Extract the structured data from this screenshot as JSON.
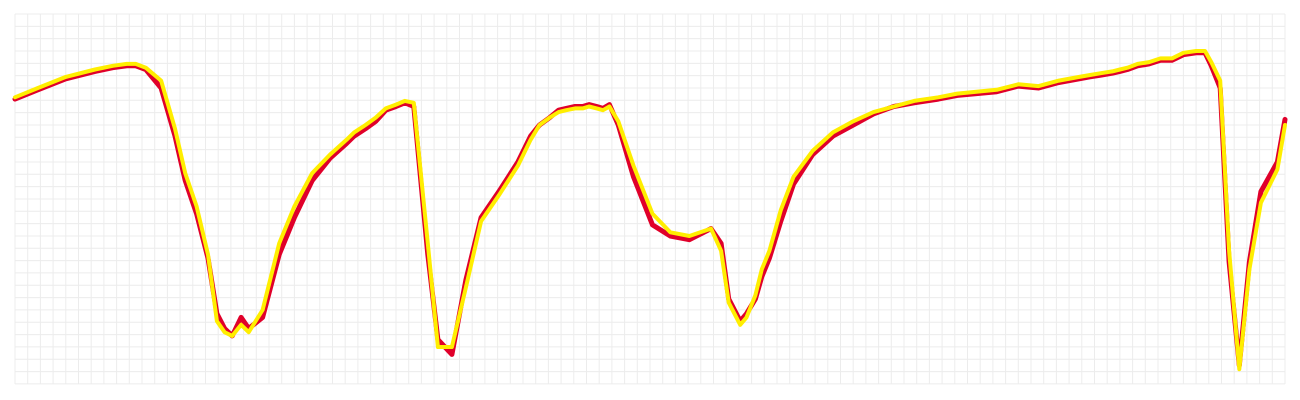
{
  "chart_data": {
    "type": "line",
    "title": "",
    "xlabel": "",
    "ylabel": "",
    "xlim": [
      0,
      100
    ],
    "ylim": [
      0,
      100
    ],
    "grid": true,
    "legend": "none",
    "series": [
      {
        "color": "#e0002a",
        "x": [
          0,
          1.8,
          4,
          6.3,
          7.7,
          8.8,
          9.5,
          10.3,
          11.5,
          12.6,
          13.4,
          14.3,
          15.2,
          15.9,
          16.5,
          17.1,
          17.8,
          18.4,
          19.5,
          20.8,
          22,
          23.4,
          24.8,
          26.1,
          26.7,
          27.6,
          28.4,
          29.2,
          30,
          30.7,
          31.4,
          32.5,
          33.3,
          34.4,
          35.5,
          36.7,
          38.1,
          39.6,
          40.6,
          41.3,
          42.1,
          42.8,
          43.4,
          44.1,
          44.7,
          45.2,
          45.8,
          46.3,
          46.8,
          47.5,
          48.7,
          50.2,
          51.6,
          53.1,
          54.8,
          55.6,
          56.2,
          57.1,
          57.6,
          58.3,
          58.8,
          59.4,
          60.3,
          61.3,
          62.8,
          64.4,
          66,
          67.6,
          69.2,
          70.8,
          72.7,
          74.2,
          75.7,
          77.3,
          79,
          80.6,
          82.2,
          83.8,
          84.6,
          85.5,
          86.4,
          87,
          87.6,
          88.4,
          89.3,
          90.2,
          91.1,
          92,
          93,
          93.7,
          94.2,
          94.9,
          95.6,
          96.4,
          97.2,
          98.1,
          99.4,
          100
        ],
        "y": [
          77,
          79.5,
          82.5,
          84.5,
          85.5,
          86,
          86,
          85,
          80,
          67,
          55,
          46,
          34,
          19,
          15,
          13,
          18,
          15,
          18,
          35,
          45,
          55,
          61,
          65,
          67,
          69,
          71,
          74,
          75,
          76,
          75,
          35,
          12,
          8,
          28,
          45,
          52,
          60,
          67,
          70,
          72,
          74,
          74.5,
          75,
          75,
          75.5,
          75,
          74.5,
          75.5,
          70,
          56,
          43,
          40,
          39,
          42,
          38,
          23,
          17,
          19,
          23,
          29,
          34,
          44,
          54,
          62,
          67,
          70,
          73,
          75,
          76,
          77,
          78,
          78.5,
          79,
          80.5,
          80,
          81.5,
          82.5,
          83,
          83.5,
          84,
          84.5,
          85,
          86,
          86.5,
          87.5,
          87.5,
          89,
          89.5,
          89.5,
          86,
          80,
          33,
          5,
          33,
          52,
          60,
          71.5
        ]
      },
      {
        "color": "#ffee00",
        "x": [
          0,
          1.8,
          4,
          6.3,
          7.7,
          8.8,
          9.5,
          10.3,
          11.5,
          12.6,
          13.4,
          14.3,
          15.2,
          15.9,
          16.5,
          17.1,
          17.8,
          18.4,
          19.5,
          20.8,
          22,
          23.4,
          24.8,
          26.1,
          26.7,
          27.6,
          28.4,
          29.2,
          30,
          30.7,
          31.4,
          32.5,
          33.3,
          34.4,
          35.5,
          36.7,
          38.1,
          39.6,
          40.6,
          41.3,
          42.1,
          42.8,
          43.4,
          44.1,
          44.7,
          45.2,
          45.8,
          46.3,
          46.8,
          47.5,
          48.7,
          50.2,
          51.6,
          53.1,
          54.8,
          55.6,
          56.2,
          57.1,
          57.6,
          58.3,
          58.8,
          59.4,
          60.3,
          61.3,
          62.8,
          64.4,
          66,
          67.6,
          69.2,
          70.8,
          72.7,
          74.2,
          75.7,
          77.3,
          79,
          80.6,
          82.2,
          83.8,
          84.6,
          85.5,
          86.4,
          87,
          87.6,
          88.4,
          89.3,
          90.2,
          91.1,
          92,
          93,
          93.7,
          94.2,
          94.9,
          95.6,
          96.4,
          97.2,
          98.1,
          99.4,
          100
        ],
        "y": [
          77.5,
          80,
          83,
          85,
          86,
          86.5,
          86.5,
          85.5,
          82,
          69,
          57,
          48,
          35,
          17,
          14,
          13,
          16,
          14,
          20,
          38,
          48,
          57,
          62,
          66,
          68,
          70,
          72,
          74.5,
          75.5,
          76.5,
          76,
          38,
          10,
          10,
          26,
          44,
          51,
          59,
          66,
          70,
          72,
          73.5,
          74,
          74.5,
          74.5,
          75,
          74.5,
          74,
          75,
          71,
          59,
          46,
          41,
          40,
          42,
          36,
          22,
          16,
          18,
          24,
          31,
          36,
          47,
          56,
          63,
          68,
          71,
          73.5,
          75,
          76.5,
          77.5,
          78.5,
          79,
          79.5,
          81,
          80.5,
          82,
          83,
          83.5,
          84,
          84.5,
          85,
          85.5,
          86.5,
          87,
          88,
          88,
          89.5,
          90,
          90,
          87,
          82,
          36,
          4,
          31,
          49,
          58,
          70
        ]
      }
    ]
  }
}
